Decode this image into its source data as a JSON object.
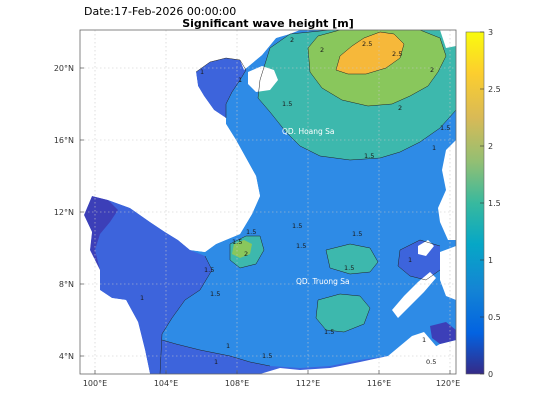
{
  "header": {
    "date_label": "Date:17-Feb-2026 00:00:00",
    "title": "Significant wave height [m]"
  },
  "map": {
    "lon_ticks": [
      "100°E",
      "104°E",
      "108°E",
      "112°E",
      "116°E",
      "120°E"
    ],
    "lat_ticks": [
      "20°N",
      "16°N",
      "12°N",
      "8°N",
      "4°N"
    ],
    "region_labels": [
      "QD. Hoang Sa",
      "QD. Truong Sa"
    ],
    "contour_labels": [
      "2",
      "2.5",
      "2.5",
      "2",
      "2",
      "1.5",
      "2",
      "1",
      "1",
      "1.5",
      "1.5",
      "1.5",
      "1.5",
      "1.5",
      "1.5",
      "2",
      "1.5",
      "1.5",
      "1.5",
      "1.5",
      "1",
      "1",
      "1.5",
      "1.5",
      "1",
      "0.5",
      "1",
      "1",
      "1"
    ]
  },
  "colorbar": {
    "ticks": [
      "3",
      "2.5",
      "2",
      "1.5",
      "1",
      "0.5",
      "0"
    ],
    "range": [
      0,
      3
    ],
    "colormap": "parula"
  },
  "colors": {
    "land": "#ffffff",
    "band_0_05": "#3c3fb8",
    "band_05_1": "#3d64dc",
    "band_1_15": "#2e8be6",
    "band_15_2": "#3db8ad",
    "band_2_25": "#89c75c",
    "band_25_3": "#f6b83a"
  }
}
